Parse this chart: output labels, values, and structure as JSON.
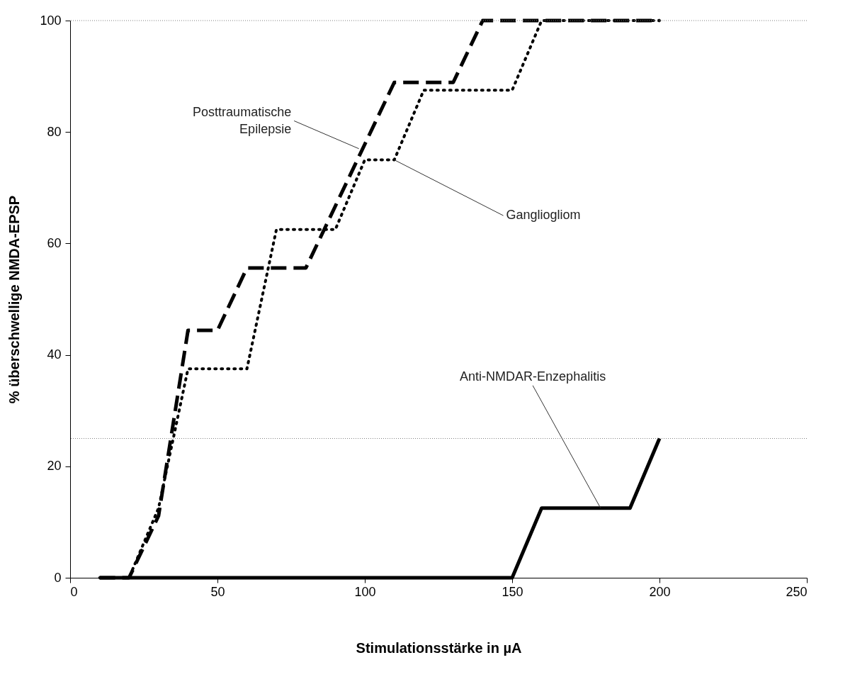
{
  "chart_data": {
    "type": "line",
    "xlabel": "Stimulationsstärke in µA",
    "ylabel": "% überschwellige NMDA-EPSP",
    "xlim": [
      0,
      250
    ],
    "xticks": [
      0,
      50,
      100,
      150,
      200,
      250
    ],
    "ylim": [
      0,
      100
    ],
    "yticks": [
      0,
      20,
      40,
      60,
      80,
      100
    ],
    "grid": false,
    "marker": "none",
    "series": [
      {
        "color": "#000000",
        "line_style": "dashed",
        "x": [
          10,
          20,
          30,
          40,
          50,
          60,
          80,
          90,
          100,
          110,
          130,
          140,
          200
        ],
        "values": [
          0,
          0,
          11.1,
          44.4,
          44.4,
          55.6,
          55.6,
          66.7,
          77.8,
          88.9,
          88.9,
          100,
          100
        ]
      },
      {
        "color": "#000000",
        "line_style": "dotted",
        "x": [
          10,
          20,
          30,
          40,
          60,
          70,
          90,
          100,
          110,
          120,
          150,
          160,
          200
        ],
        "values": [
          0,
          0,
          12.5,
          37.5,
          37.5,
          62.5,
          62.5,
          75,
          75,
          87.5,
          87.5,
          100,
          100
        ]
      },
      {
        "color": "#000000",
        "line_style": "solid",
        "x": [
          10,
          150,
          160,
          190,
          200
        ],
        "values": [
          0,
          0,
          12.5,
          12.5,
          25
        ]
      }
    ],
    "ref_lines": [
      {
        "axis": "y",
        "value": 100,
        "color": "#808080",
        "line_style": "dotted"
      },
      {
        "axis": "y",
        "value": 25,
        "color": "#808080",
        "line_style": "dotted"
      }
    ],
    "annotations": [
      {
        "text": "Posttraumatische\nEpilepsie",
        "x": 98,
        "y": 77
      },
      {
        "text": "Gangliogliom",
        "x": 110,
        "y": 75
      },
      {
        "text": "Anti-NMDAR-Enzephalitis",
        "x": 180,
        "y": 12.5
      }
    ]
  }
}
